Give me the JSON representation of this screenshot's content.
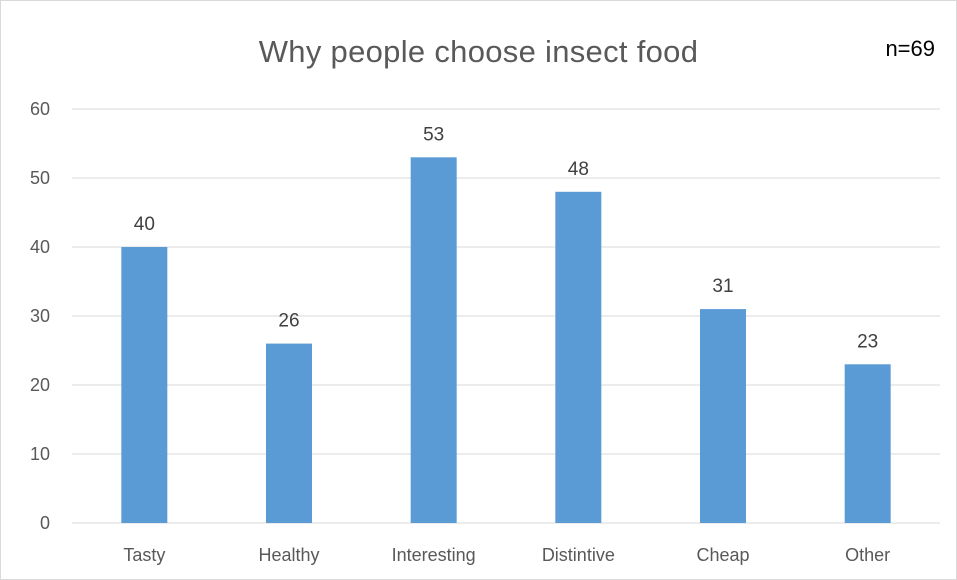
{
  "chart_data": {
    "type": "bar",
    "title": "Why people choose insect food",
    "note": "n=69",
    "categories": [
      "Tasty",
      "Healthy",
      "Interesting",
      "Distintive",
      "Cheap",
      "Other"
    ],
    "values": [
      40,
      26,
      53,
      48,
      31,
      23
    ],
    "data_labels": [
      "40",
      "26",
      "53",
      "48",
      "31",
      "23"
    ],
    "yticks": [
      "0",
      "10",
      "20",
      "30",
      "40",
      "50",
      "60"
    ],
    "ylim": [
      0,
      60
    ],
    "grid": true,
    "legend": "none",
    "colors": {
      "bar": "#5b9bd5",
      "grid": "#d9d9d9",
      "text": "#595959"
    }
  }
}
